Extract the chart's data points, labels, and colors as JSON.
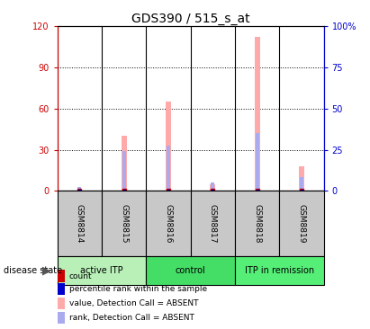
{
  "title": "GDS390 / 515_s_at",
  "samples": [
    "GSM8814",
    "GSM8815",
    "GSM8816",
    "GSM8817",
    "GSM8818",
    "GSM8819"
  ],
  "pink_bar_values": [
    0.5,
    40,
    65,
    5,
    112,
    18
  ],
  "blue_bar_values": [
    3,
    29,
    33,
    6,
    42,
    10
  ],
  "ylim_left": [
    0,
    120
  ],
  "ylim_right": [
    0,
    100
  ],
  "yticks_left": [
    0,
    30,
    60,
    90,
    120
  ],
  "yticks_right": [
    0,
    25,
    50,
    75,
    100
  ],
  "ytick_labels_left": [
    "0",
    "30",
    "60",
    "90",
    "120"
  ],
  "ytick_labels_right": [
    "0",
    "25",
    "50",
    "75",
    "100%"
  ],
  "groups": [
    {
      "label": "active ITP",
      "start": 0,
      "end": 2,
      "color": "#b8f0b8"
    },
    {
      "label": "control",
      "start": 2,
      "end": 4,
      "color": "#44dd66"
    },
    {
      "label": "ITP in remission",
      "start": 4,
      "end": 6,
      "color": "#55ee77"
    }
  ],
  "bar_width": 0.12,
  "pink_color": "#ffaaaa",
  "blue_color": "#aaaaee",
  "red_color": "#cc0000",
  "navy_color": "#0000cc",
  "axis_color_left": "#cc0000",
  "axis_color_right": "#0000cc",
  "sample_box_color": "#c8c8c8",
  "title_fontsize": 10,
  "legend_labels": [
    "count",
    "percentile rank within the sample",
    "value, Detection Call = ABSENT",
    "rank, Detection Call = ABSENT"
  ],
  "legend_colors": [
    "#cc0000",
    "#0000cc",
    "#ffaaaa",
    "#aaaaee"
  ]
}
